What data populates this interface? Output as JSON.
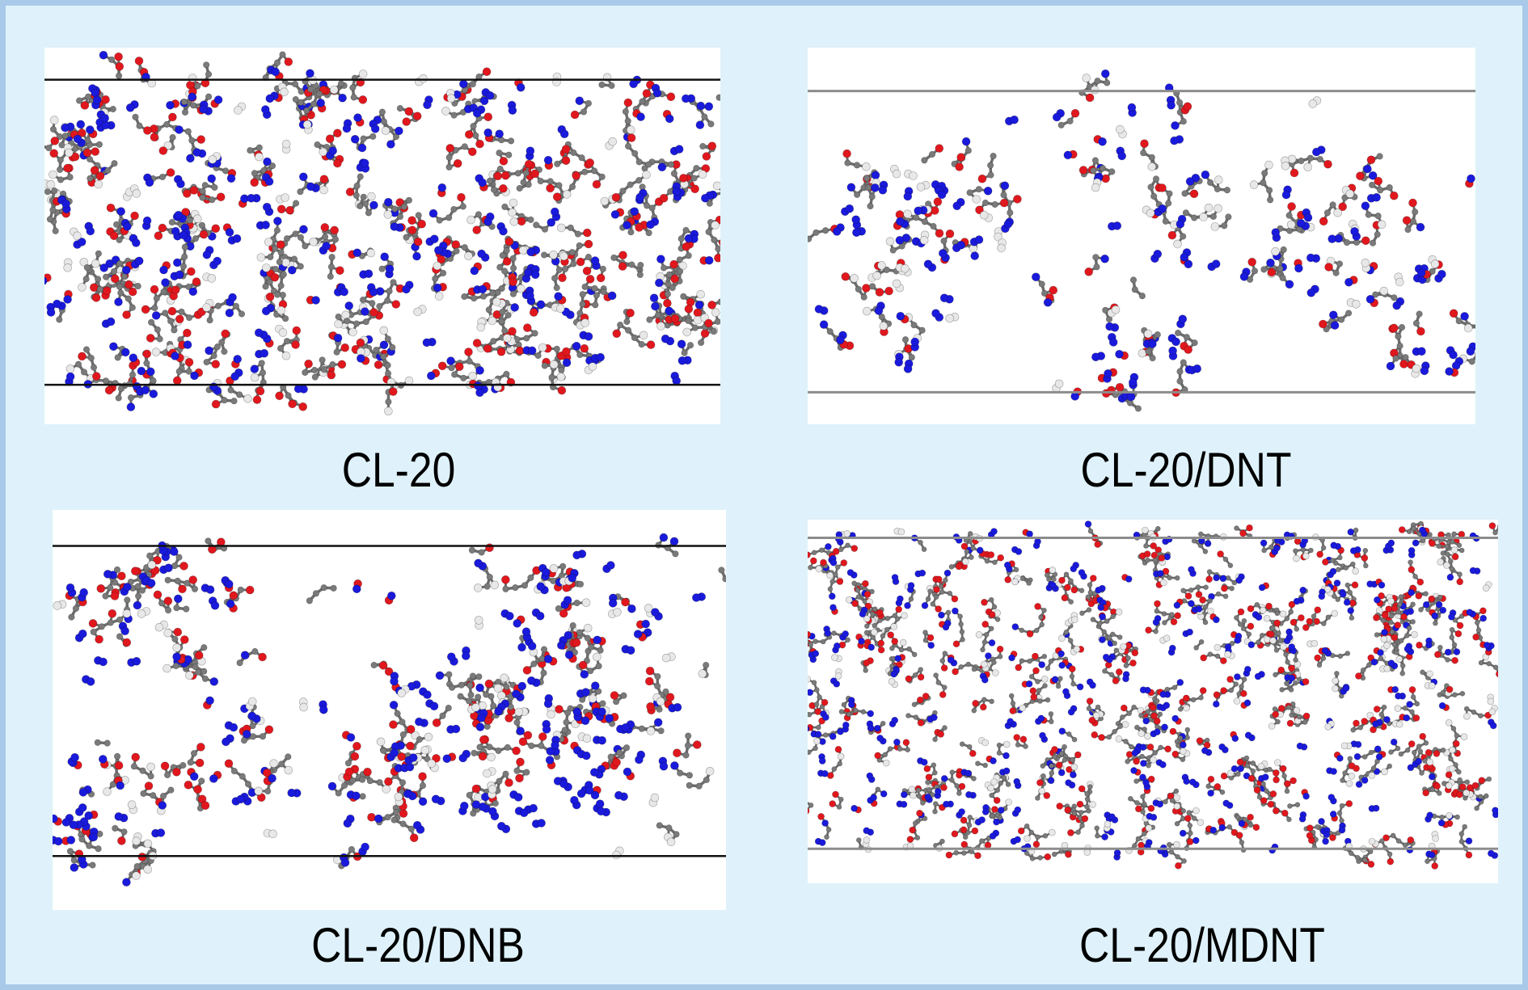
{
  "panels": [
    {
      "caption": "CL-20",
      "distribution": "uniform-dense",
      "boundary_lines": "black"
    },
    {
      "caption": "CL-20/DNT",
      "distribution": "clustered-sparse",
      "boundary_lines": "grey"
    },
    {
      "caption": "CL-20/DNB",
      "distribution": "clustered",
      "boundary_lines": "black"
    },
    {
      "caption": "CL-20/MDNT",
      "distribution": "uniform-very-dense",
      "boundary_lines": "grey"
    }
  ],
  "atom_colors": {
    "oxygen": "#e0181e",
    "nitrogen": "#1a1adc",
    "carbon": "#7a7a7a",
    "hydrogen": "#e8e8e8"
  },
  "colors": {
    "background": "#dff2fb",
    "frame": "#a9c9e8",
    "panel": "#ffffff"
  }
}
